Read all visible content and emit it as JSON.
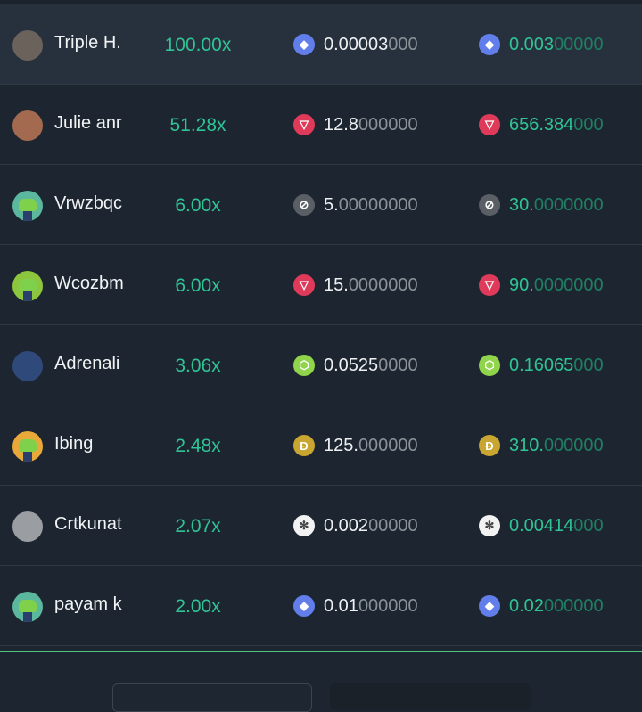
{
  "rows": [
    {
      "name": "Triple H.",
      "avatar": "photo",
      "avatar_color": "#6b625c",
      "multiplier": "100.00x",
      "coin_icon": "ethereum-icon",
      "coin_color": "#627eea",
      "coin_glyph": "◆",
      "amount_main": "0.00003",
      "amount_trail": "000",
      "payout_main": "0.003",
      "payout_trail": "00000",
      "highlighted": true
    },
    {
      "name": "Julie anr",
      "avatar": "photo",
      "avatar_color": "#a46a50",
      "multiplier": "51.28x",
      "coin_icon": "tron-icon",
      "coin_color": "#df3a5a",
      "coin_glyph": "▽",
      "amount_main": "12.8",
      "amount_trail": "000000",
      "payout_main": "656.384",
      "payout_trail": "000"
    },
    {
      "name": "Vrwzbqc",
      "avatar": "crocodile",
      "avatar_color": "#5bb79d",
      "multiplier": "6.00x",
      "coin_icon": "stellar-icon",
      "coin_color": "#5a5f66",
      "coin_glyph": "⊘",
      "amount_main": "5.",
      "amount_trail": "00000000",
      "payout_main": "30.",
      "payout_trail": "0000000"
    },
    {
      "name": "Wcozbm",
      "avatar": "crocodile",
      "avatar_color": "#8cc63f",
      "multiplier": "6.00x",
      "coin_icon": "tron-icon",
      "coin_color": "#df3a5a",
      "coin_glyph": "▽",
      "amount_main": "15.",
      "amount_trail": "0000000",
      "payout_main": "90.",
      "payout_trail": "0000000"
    },
    {
      "name": "Adrenali",
      "avatar": "photo",
      "avatar_color": "#2f4a7a",
      "multiplier": "3.06x",
      "coin_icon": "eos-icon",
      "coin_color": "#8fd44a",
      "coin_glyph": "⬡",
      "amount_main": "0.0525",
      "amount_trail": "0000",
      "payout_main": "0.16065",
      "payout_trail": "000"
    },
    {
      "name": "Ibing",
      "avatar": "crocodile",
      "avatar_color": "#e9a93a",
      "multiplier": "2.48x",
      "coin_icon": "dogecoin-icon",
      "coin_color": "#c9a631",
      "coin_glyph": "Đ",
      "amount_main": "125.",
      "amount_trail": "000000",
      "payout_main": "310.",
      "payout_trail": "000000"
    },
    {
      "name": "Crtkunat",
      "avatar": "badge",
      "avatar_color": "#9a9ea3",
      "multiplier": "2.07x",
      "coin_icon": "white-seal-coin-icon",
      "coin_color": "#f2f2f2",
      "coin_glyph": "✻",
      "amount_main": "0.002",
      "amount_trail": "00000",
      "payout_main": "0.00414",
      "payout_trail": "000"
    },
    {
      "name": "payam k",
      "avatar": "crocodile",
      "avatar_color": "#5bb79d",
      "multiplier": "2.00x",
      "coin_icon": "ethereum-icon",
      "coin_color": "#627eea",
      "coin_glyph": "◆",
      "amount_main": "0.01",
      "amount_trail": "000000",
      "payout_main": "0.02",
      "payout_trail": "000000"
    }
  ],
  "colors": {
    "accent_green": "#2fc495",
    "divider_green": "#4fc57d",
    "background": "#1d2630"
  }
}
